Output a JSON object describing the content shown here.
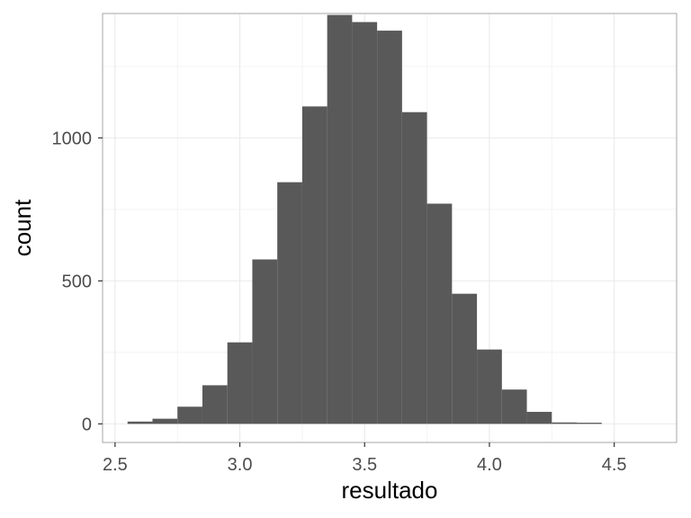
{
  "chart_data": {
    "type": "histogram",
    "xlabel": "resultado",
    "ylabel": "count",
    "xlim": [
      2.45,
      4.75
    ],
    "ylim": [
      -65,
      1435
    ],
    "x_ticks": [
      2.5,
      3.0,
      3.5,
      4.0,
      4.5
    ],
    "x_tick_labels": [
      "2.5",
      "3.0",
      "3.5",
      "4.0",
      "4.5"
    ],
    "y_ticks": [
      0,
      500,
      1000
    ],
    "y_tick_labels": [
      "0",
      "500",
      "1000"
    ],
    "bin_width": 0.1,
    "bins": [
      {
        "x0": 2.55,
        "x1": 2.65,
        "count": 8
      },
      {
        "x0": 2.65,
        "x1": 2.75,
        "count": 18
      },
      {
        "x0": 2.75,
        "x1": 2.85,
        "count": 60
      },
      {
        "x0": 2.85,
        "x1": 2.95,
        "count": 135
      },
      {
        "x0": 2.95,
        "x1": 3.05,
        "count": 285
      },
      {
        "x0": 3.05,
        "x1": 3.15,
        "count": 575
      },
      {
        "x0": 3.15,
        "x1": 3.25,
        "count": 845
      },
      {
        "x0": 3.25,
        "x1": 3.35,
        "count": 1110
      },
      {
        "x0": 3.35,
        "x1": 3.45,
        "count": 1430
      },
      {
        "x0": 3.45,
        "x1": 3.55,
        "count": 1405
      },
      {
        "x0": 3.55,
        "x1": 3.65,
        "count": 1375
      },
      {
        "x0": 3.65,
        "x1": 3.75,
        "count": 1090
      },
      {
        "x0": 3.75,
        "x1": 3.85,
        "count": 770
      },
      {
        "x0": 3.85,
        "x1": 3.95,
        "count": 455
      },
      {
        "x0": 3.95,
        "x1": 4.05,
        "count": 260
      },
      {
        "x0": 4.05,
        "x1": 4.15,
        "count": 120
      },
      {
        "x0": 4.15,
        "x1": 4.25,
        "count": 42
      },
      {
        "x0": 4.25,
        "x1": 4.35,
        "count": 5
      },
      {
        "x0": 4.35,
        "x1": 4.45,
        "count": 4
      }
    ],
    "grid": true,
    "bar_color": "#595959",
    "grid_major_color": "#ebebeb",
    "grid_minor_color": "#f4f4f4",
    "panel_border_color": "#b3b3b3"
  }
}
